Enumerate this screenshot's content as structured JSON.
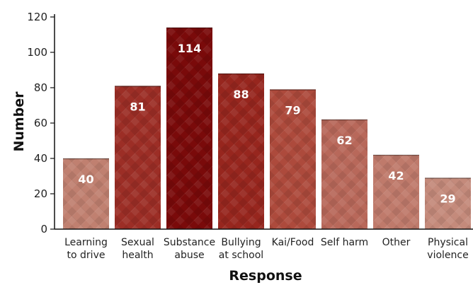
{
  "chart_data": {
    "type": "bar",
    "xlabel": "Response",
    "ylabel": "Number",
    "ylim": [
      0,
      120
    ],
    "yticks": [
      0,
      20,
      40,
      60,
      80,
      100,
      120
    ],
    "grid": false,
    "categories": [
      [
        "Learning",
        "to drive"
      ],
      [
        "Sexual",
        "health"
      ],
      [
        "Substance",
        "abuse"
      ],
      [
        "Bullying",
        "at school"
      ],
      [
        "Kai/Food"
      ],
      [
        "Self harm"
      ],
      [
        "Other"
      ],
      [
        "Physical",
        "violence"
      ]
    ],
    "values": [
      40,
      81,
      114,
      88,
      79,
      62,
      42,
      29
    ],
    "colors": [
      "#c08070",
      "#9c2e26",
      "#7a0a0a",
      "#97261e",
      "#ad4a3c",
      "#b8685a",
      "#bf7a6b",
      "#c48a7b"
    ]
  }
}
